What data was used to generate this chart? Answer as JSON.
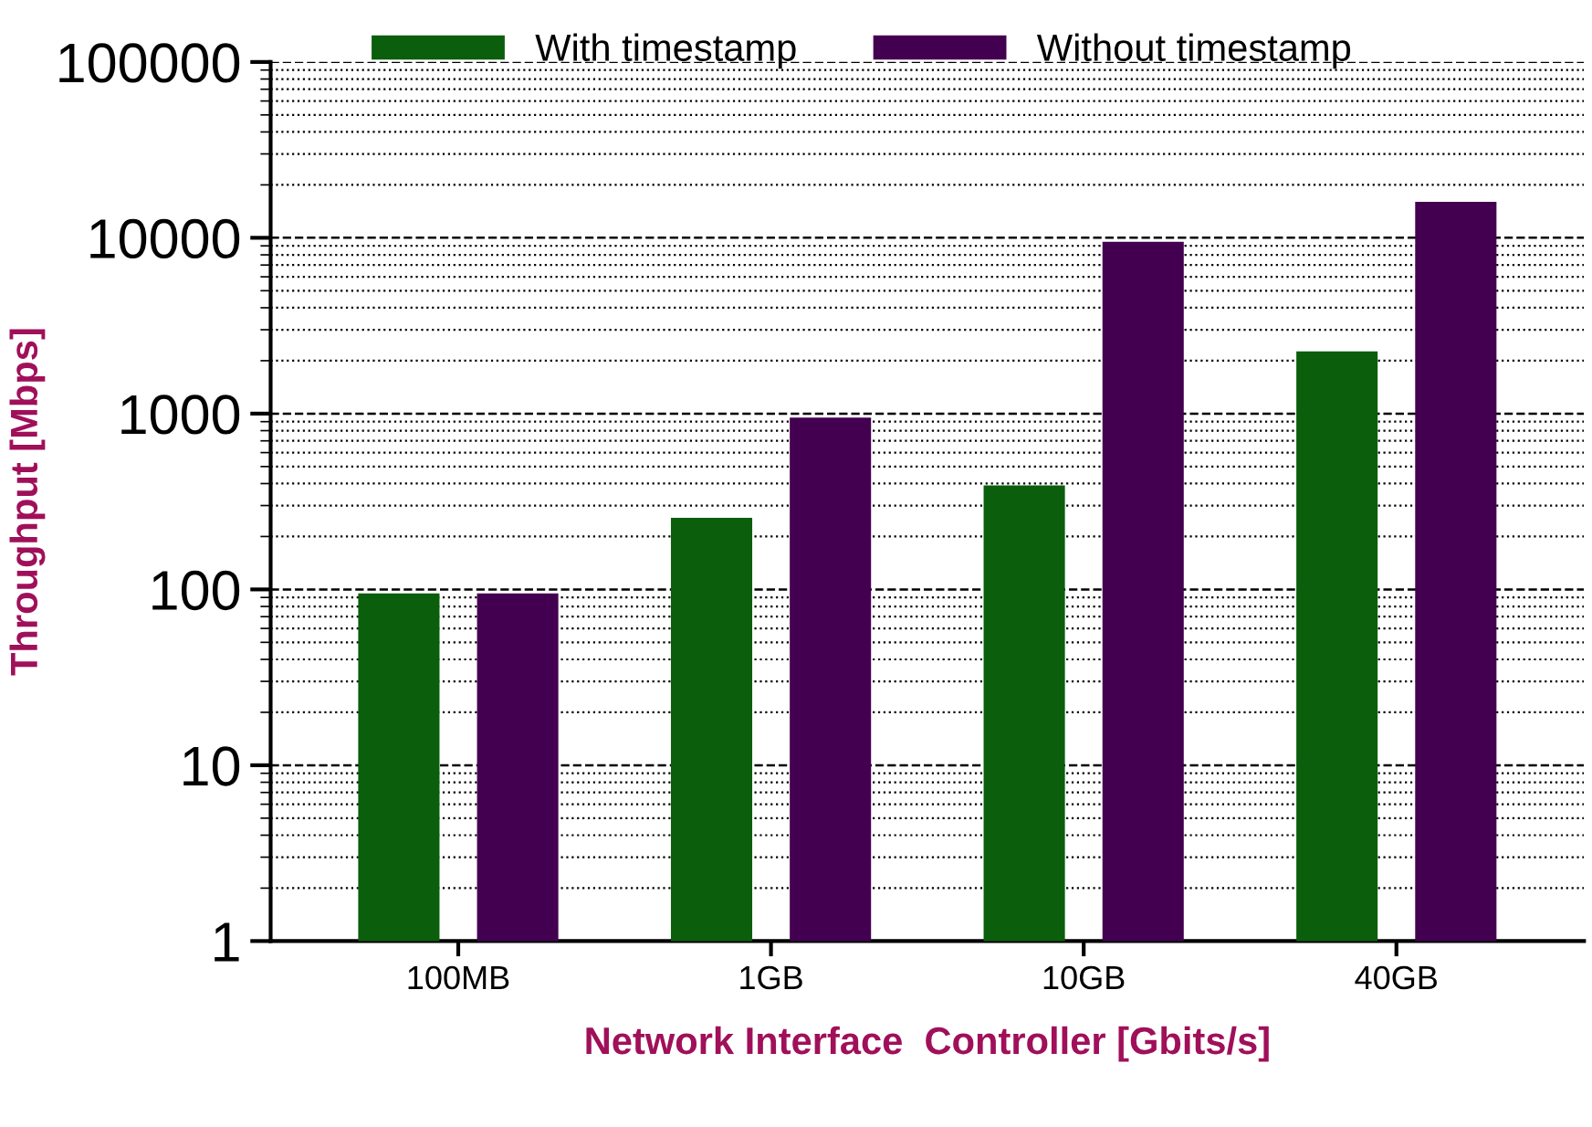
{
  "chart_data": {
    "type": "bar",
    "xlabel": "Network Interface  Controller [Gbits/s]",
    "ylabel": "Throughput [Mbps]",
    "categories": [
      "100MB",
      "1GB",
      "10GB",
      "40GB"
    ],
    "series": [
      {
        "name": "With timestamp",
        "color": "#0b5e0b",
        "values": [
          95,
          255,
          390,
          2260
        ]
      },
      {
        "name": "Without timestamp",
        "color": "#440050",
        "values": [
          95,
          950,
          9500,
          16000
        ]
      }
    ],
    "log": "y",
    "ylim": [
      1,
      100000
    ],
    "yticks": [
      1,
      10,
      100,
      1000,
      10000,
      100000
    ],
    "grid": "y",
    "legend": "top"
  }
}
